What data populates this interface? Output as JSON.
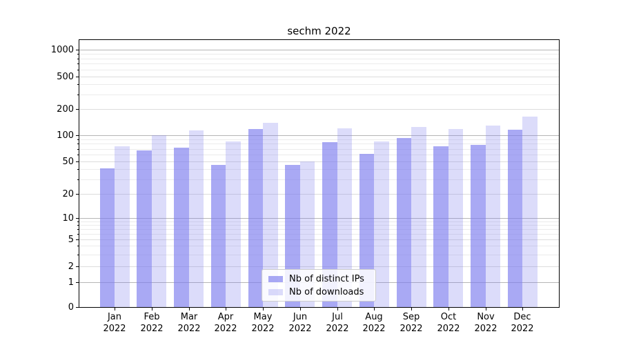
{
  "title": "sechm 2022",
  "chart_data": {
    "type": "bar",
    "categories": [
      "Jan",
      "Feb",
      "Mar",
      "Apr",
      "May",
      "Jun",
      "Jul",
      "Aug",
      "Sep",
      "Oct",
      "Nov",
      "Dec"
    ],
    "year": "2022",
    "series": [
      {
        "name": "Nb of distinct IPs",
        "color": "rgba(124,124,238,0.66)",
        "values": [
          41,
          67,
          72,
          45,
          118,
          45,
          83,
          61,
          93,
          75,
          78,
          116
        ]
      },
      {
        "name": "Nb of downloads",
        "color": "rgba(124,124,238,0.27)",
        "values": [
          75,
          100,
          113,
          85,
          140,
          50,
          120,
          85,
          125,
          118,
          128,
          163
        ]
      }
    ],
    "xlabel": "",
    "ylabel": "",
    "yscale": "symlog",
    "ylim": [
      0,
      1000
    ],
    "yticks_labeled": [
      0,
      1,
      2,
      5,
      10,
      20,
      50,
      100,
      200,
      500,
      1000
    ],
    "yticks_major_grid": [
      1,
      10,
      100,
      1000
    ],
    "yticks_minor": [
      3,
      4,
      6,
      7,
      8,
      9,
      30,
      40,
      60,
      70,
      80,
      90,
      300,
      400,
      600,
      700,
      800,
      900
    ],
    "grid": true,
    "legend_position": "lower center"
  },
  "colors": {
    "bar_base": "#7c7cee",
    "grid_major": "#b5b5b5",
    "grid_labeled_minor": "#dcdcdc",
    "grid_minor": "#ebebeb",
    "spine": "#000000",
    "legend_border": "#cccccc"
  }
}
